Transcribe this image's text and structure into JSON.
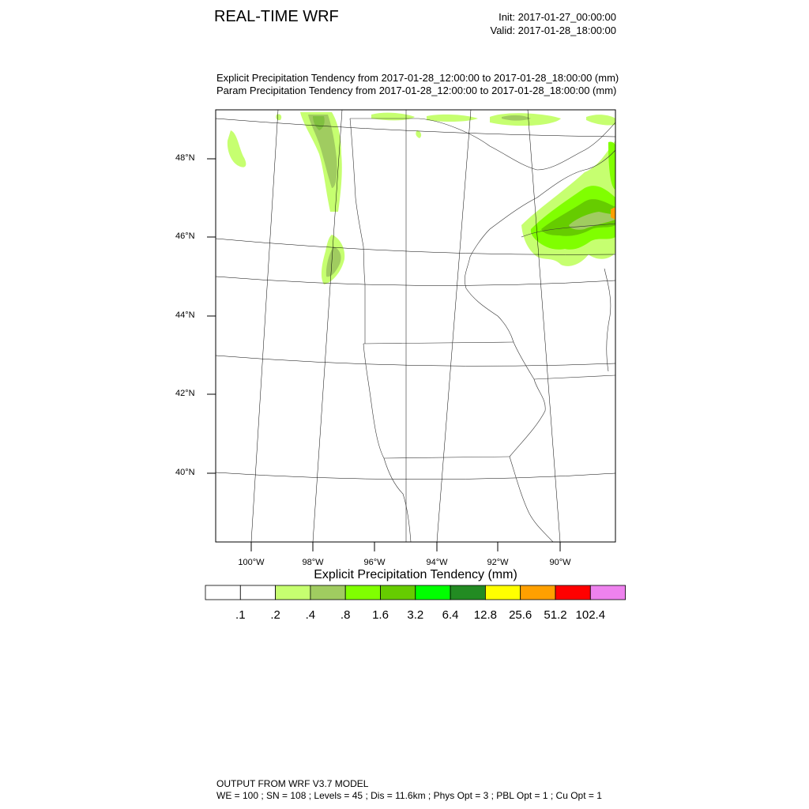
{
  "header": {
    "title": "REAL-TIME WRF",
    "init": "Init: 2017-01-27_00:00:00",
    "valid": "Valid: 2017-01-28_18:00:00",
    "subtitle_1": "Explicit Precipitation Tendency from 2017-01-28_12:00:00 to 2017-01-28_18:00:00   (mm)",
    "subtitle_2": "Param  Precipitation Tendency from 2017-01-28_12:00:00 to 2017-01-28_18:00:00   (mm)"
  },
  "map": {
    "lat_labels": [
      "48°N",
      "46°N",
      "44°N",
      "42°N",
      "40°N"
    ],
    "lon_labels": [
      "100°W",
      "98°W",
      "96°W",
      "94°W",
      "92°W",
      "90°W"
    ]
  },
  "colorbar": {
    "title": "Explicit Precipitation Tendency  (mm)",
    "labels": [
      ".1",
      ".2",
      ".4",
      ".8",
      "1.6",
      "3.2",
      "6.4",
      "12.8",
      "25.6",
      "51.2",
      "102.4"
    ],
    "colors": [
      "#ffffff",
      "#ffffff",
      "#c6ff70",
      "#a0cc60",
      "#80ff00",
      "#66cc00",
      "#00ff00",
      "#228b22",
      "#ffff00",
      "#ffa000",
      "#ff0000",
      "#ee82ee"
    ]
  },
  "footer": {
    "line1": "OUTPUT FROM WRF V3.7 MODEL",
    "line2": "WE = 100 ; SN = 108 ; Levels = 45 ; Dis = 11.6km ; Phys Opt = 3 ; PBL Opt = 1 ; Cu Opt = 1"
  }
}
